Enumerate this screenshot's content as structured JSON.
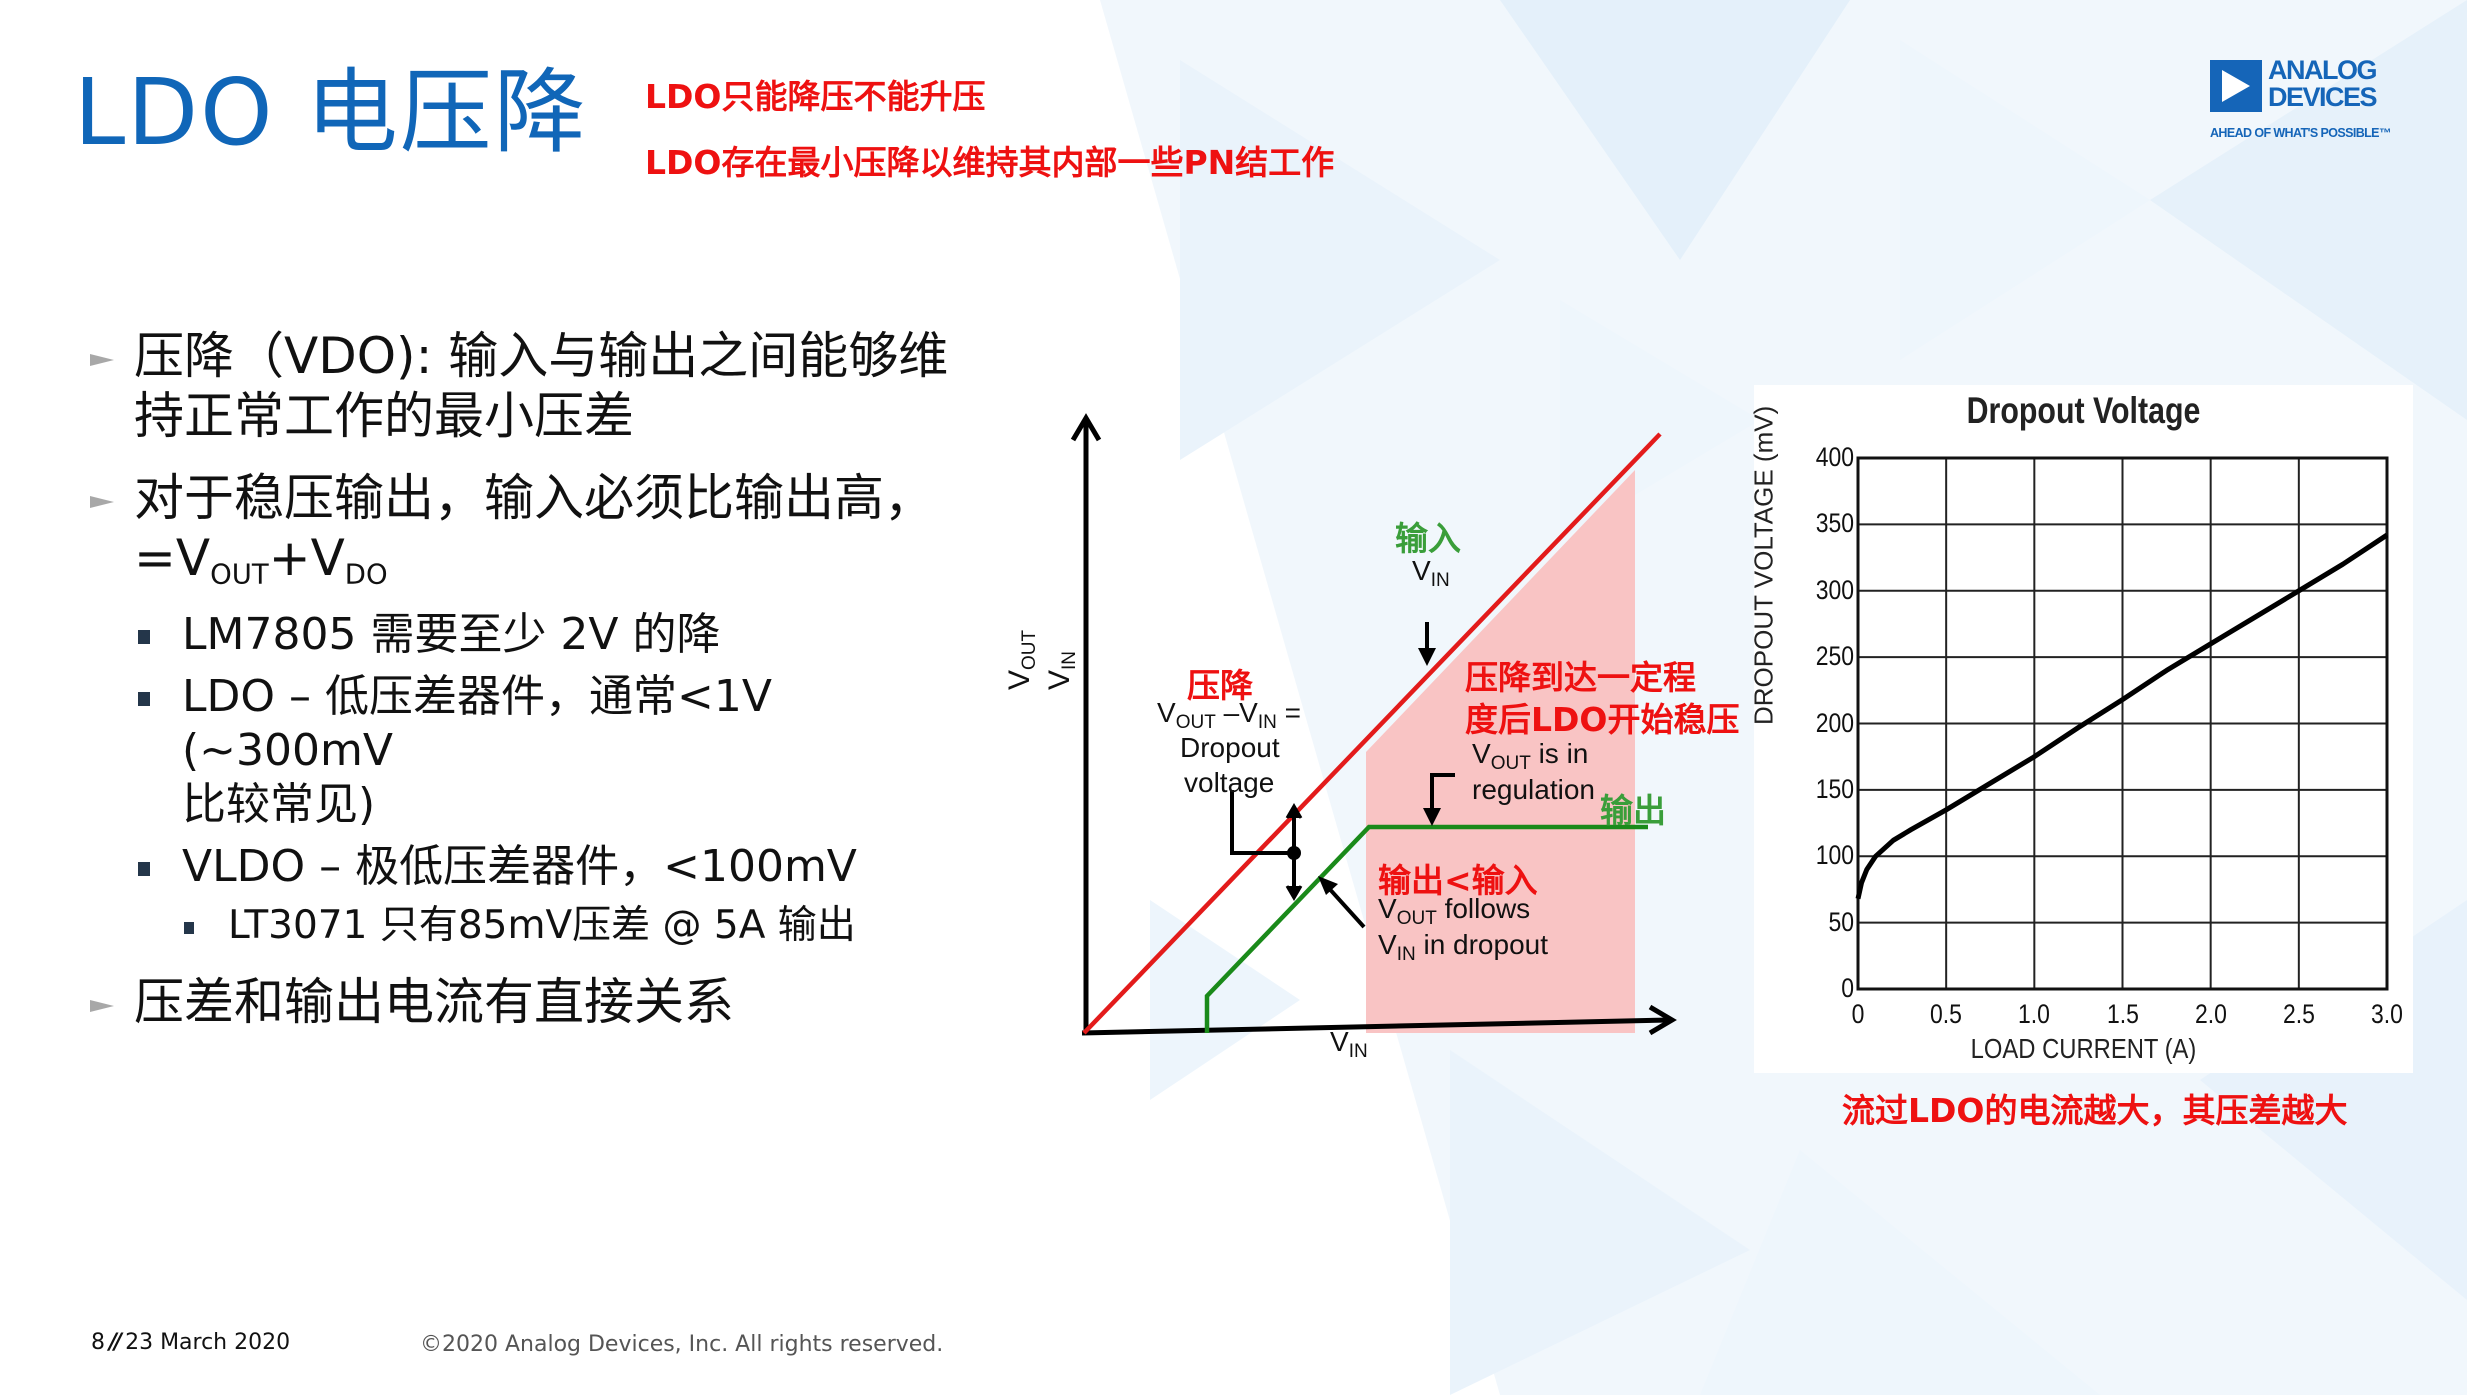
{
  "slide": {
    "title": "LDO 电压降",
    "notes": [
      "LDO只能降压不能升压",
      "LDO存在最小压降以维持其内部一些PN结工作"
    ],
    "logo": {
      "line1": "ANALOG",
      "line2": "DEVICES",
      "tagline": "AHEAD OF WHAT'S POSSIBLE™"
    },
    "colors": {
      "title_blue": "#1066b8",
      "annotation_red": "#ee1111",
      "annotation_green": "#3a9e3a",
      "vin_line": "#e31b1b",
      "vout_line": "#1a8a1a",
      "regulation_region": "#f9c4c4"
    }
  },
  "bullets": {
    "b1_main": "压降（VDO): 输入与输出之间能够维",
    "b1_cont": "持正常工作的最小压差",
    "b2_main": "对于稳压输出，输入必须比输出高，",
    "b2_formula": {
      "eq": "=V",
      "sub1": "OUT",
      "plus": "+V",
      "sub2": "DO"
    },
    "sub_items": [
      "LM7805 需要至少 2V 的降",
      "LDO – 低压差器件，通常<1V (~300mV",
      "比较常见)",
      "VLDO – 极低压差器件，<100mV"
    ],
    "sub_sub_item": "LT3071 只有85mV压差 @ 5A 输出",
    "b3_main": "压差和输出电流有直接关系"
  },
  "diagram": {
    "y_axis_label": {
      "v1": "V",
      "s1": "OUT",
      "v2": "V",
      "s2": "IN"
    },
    "x_axis_label": {
      "v": "V",
      "s": "IN"
    },
    "input_cn": "输入",
    "vin_label": {
      "v": "V",
      "s": "IN"
    },
    "dropout_cn": "压降",
    "dropout_formula": {
      "v1": "V",
      "s1": "OUT",
      "mid": " –V",
      "s2": "IN",
      "tail": " ="
    },
    "dropout_line2": "Dropout",
    "dropout_line3": "voltage",
    "regulation_cn_1": "压降到达一定程",
    "regulation_cn_2": "度后LDO开始稳压",
    "regulation_en": {
      "v": "V",
      "s": "OUT",
      "tail": " is in",
      "line2": "regulation"
    },
    "output_cn": "输出",
    "follows_cn": "输出<输入",
    "follows_en": {
      "v": "V",
      "s": "OUT",
      "tail": " follows",
      "v2": "V",
      "s2": "IN",
      "tail2": " in dropout"
    }
  },
  "chart_data": {
    "type": "line",
    "title": "Dropout Voltage",
    "xlabel": "LOAD CURRENT (A)",
    "ylabel": "DROPOUT VOLTAGE (mV)",
    "xlim": [
      0,
      3.0
    ],
    "ylim": [
      0,
      400
    ],
    "x_ticks": [
      "0",
      "0.5",
      "1.0",
      "1.5",
      "2.0",
      "2.5",
      "3.0"
    ],
    "y_ticks": [
      "0",
      "50",
      "100",
      "150",
      "200",
      "250",
      "300",
      "350",
      "400"
    ],
    "grid": true,
    "series": [
      {
        "name": "Dropout Voltage",
        "x": [
          0,
          0.02,
          0.05,
          0.1,
          0.2,
          0.3,
          0.5,
          0.75,
          1.0,
          1.25,
          1.5,
          1.75,
          2.0,
          2.25,
          2.5,
          2.75,
          3.0
        ],
        "y": [
          68,
          80,
          90,
          100,
          112,
          120,
          135,
          155,
          175,
          197,
          218,
          240,
          260,
          280,
          300,
          320,
          342
        ]
      }
    ],
    "caption": "流过LDO的电流越大，其压差越大"
  },
  "footer": {
    "page": "8",
    "separator": "//",
    "date": "23 March 2020",
    "copyright": "©2020 Analog Devices, Inc. All rights reserved."
  }
}
